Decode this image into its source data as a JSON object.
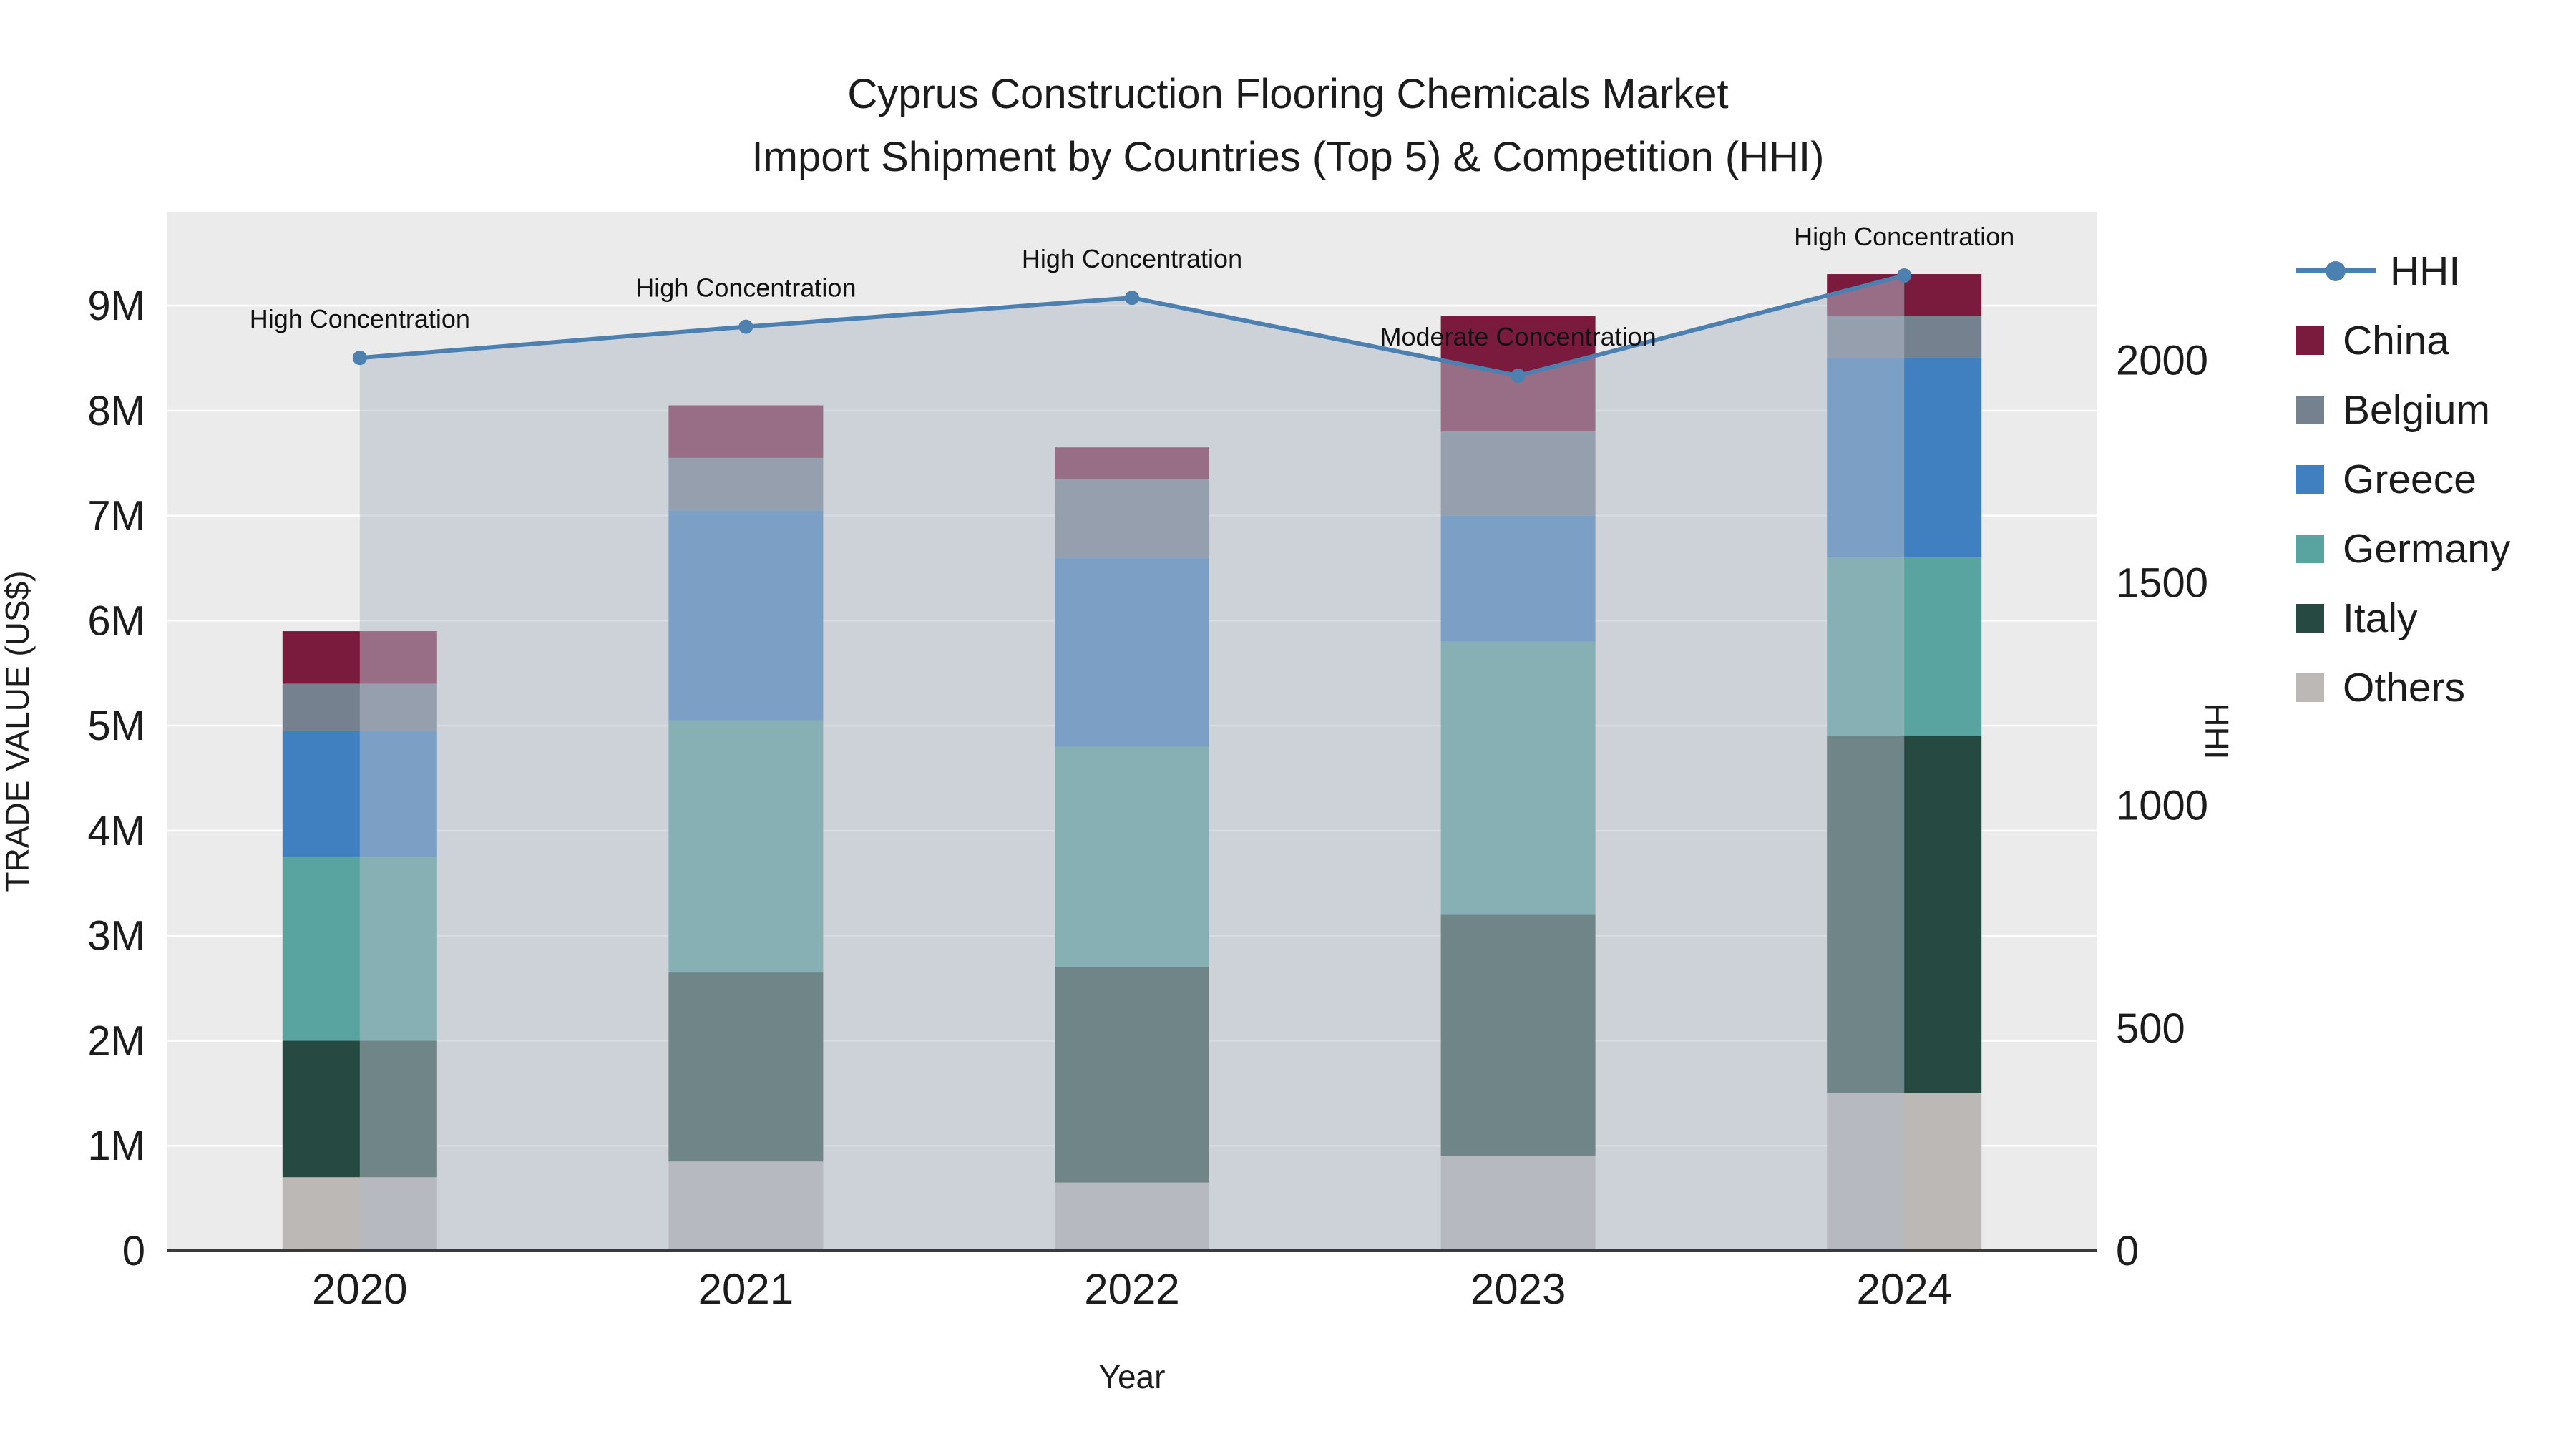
{
  "title": {
    "line1": "Cyprus Construction Flooring Chemicals Market",
    "line2": "Import Shipment by Countries (Top 5) & Competition (HHI)"
  },
  "axes": {
    "x": {
      "label": "Year",
      "categories": [
        "2020",
        "2021",
        "2022",
        "2023",
        "2024"
      ]
    },
    "y_left": {
      "label": "TRADE VALUE (US$)",
      "max": 9.893,
      "unit": "million US$",
      "ticks": [
        {
          "v": 0,
          "label": "0"
        },
        {
          "v": 1,
          "label": "1M"
        },
        {
          "v": 2,
          "label": "2M"
        },
        {
          "v": 3,
          "label": "3M"
        },
        {
          "v": 4,
          "label": "4M"
        },
        {
          "v": 5,
          "label": "5M"
        },
        {
          "v": 6,
          "label": "6M"
        },
        {
          "v": 7,
          "label": "7M"
        },
        {
          "v": 8,
          "label": "8M"
        },
        {
          "v": 9,
          "label": "9M"
        }
      ]
    },
    "y_right": {
      "label": "HHI",
      "max": 2333,
      "ticks": [
        {
          "v": 0,
          "label": "0"
        },
        {
          "v": 500,
          "label": "500"
        },
        {
          "v": 1000,
          "label": "1000"
        },
        {
          "v": 1500,
          "label": "1500"
        },
        {
          "v": 2000,
          "label": "2000"
        }
      ]
    }
  },
  "legend": {
    "items": [
      {
        "label": "HHI",
        "type": "line",
        "color": "#4C80B1"
      },
      {
        "label": "China",
        "type": "square",
        "color": "#7A1B3D"
      },
      {
        "label": "Belgium",
        "type": "square",
        "color": "#76818F"
      },
      {
        "label": "Greece",
        "type": "square",
        "color": "#4180C0"
      },
      {
        "label": "Germany",
        "type": "square",
        "color": "#59A4A0"
      },
      {
        "label": "Italy",
        "type": "square",
        "color": "#264A42"
      },
      {
        "label": "Others",
        "type": "square",
        "color": "#BBB8B6"
      }
    ]
  },
  "chart_data": {
    "type": "bar",
    "stacked": true,
    "grid": true,
    "legend_position": "right",
    "categories": [
      "2020",
      "2021",
      "2022",
      "2023",
      "2024"
    ],
    "value_unit": "million US$",
    "bar_series": [
      {
        "name": "Others",
        "color": "#BBB8B6",
        "values": [
          0.7,
          0.85,
          0.65,
          0.9,
          1.5
        ]
      },
      {
        "name": "Italy",
        "color": "#264A42",
        "values": [
          1.3,
          1.8,
          2.05,
          2.3,
          3.4
        ]
      },
      {
        "name": "Germany",
        "color": "#59A4A0",
        "values": [
          1.75,
          2.4,
          2.1,
          2.6,
          1.7
        ]
      },
      {
        "name": "Greece",
        "color": "#4180C0",
        "values": [
          1.2,
          2.0,
          1.8,
          1.2,
          1.9
        ]
      },
      {
        "name": "Belgium",
        "color": "#76818F",
        "values": [
          0.45,
          0.5,
          0.75,
          0.8,
          0.4
        ]
      },
      {
        "name": "China",
        "color": "#7A1B3D",
        "values": [
          0.5,
          0.5,
          0.3,
          1.1,
          0.4
        ]
      }
    ],
    "bar_totals": [
      5.9,
      8.05,
      7.65,
      8.9,
      9.3
    ],
    "line_series": {
      "name": "HHI",
      "color": "#4C80B1",
      "axis": "right",
      "values": [
        2005,
        2075,
        2140,
        1965,
        2190
      ]
    },
    "area_fill": {
      "series": "HHI",
      "color": "rgba(178,188,202,0.52)"
    },
    "annotations": [
      {
        "x": "2020",
        "text": "High Concentration"
      },
      {
        "x": "2021",
        "text": "High Concentration"
      },
      {
        "x": "2022",
        "text": "High Concentration"
      },
      {
        "x": "2023",
        "text": "Moderate Concentration"
      },
      {
        "x": "2024",
        "text": "High Concentration"
      }
    ],
    "ylim_left": [
      0,
      9.893
    ],
    "ylim_right": [
      0,
      2333
    ]
  },
  "colors": {
    "plot_bg": "#EBEBEB",
    "grid": "#FFFFFF",
    "axis_line": "#3a3a3a",
    "text": "#1c1c1c"
  }
}
